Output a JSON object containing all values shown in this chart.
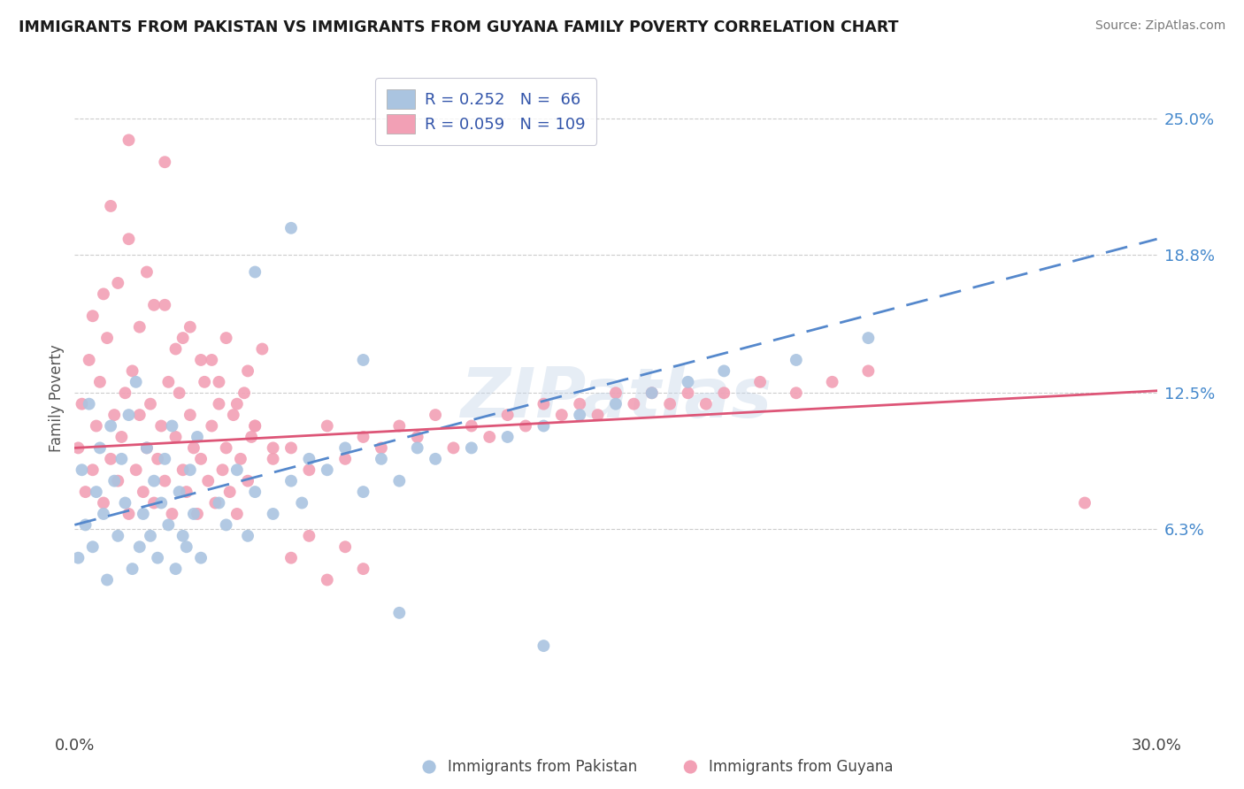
{
  "title": "IMMIGRANTS FROM PAKISTAN VS IMMIGRANTS FROM GUYANA FAMILY POVERTY CORRELATION CHART",
  "source": "Source: ZipAtlas.com",
  "ylabel": "Family Poverty",
  "xlim": [
    0.0,
    0.3
  ],
  "ylim": [
    -0.03,
    0.275
  ],
  "x_tick_labels": [
    "0.0%",
    "30.0%"
  ],
  "x_tick_vals": [
    0.0,
    0.3
  ],
  "y_tick_labels_right": [
    "25.0%",
    "18.8%",
    "12.5%",
    "6.3%"
  ],
  "y_tick_values_right": [
    0.25,
    0.188,
    0.125,
    0.063
  ],
  "pakistan_color": "#aac4e0",
  "guyana_color": "#f2a0b5",
  "pakistan_line_color": "#5588cc",
  "guyana_line_color": "#dd5577",
  "R_pakistan": 0.252,
  "N_pakistan": 66,
  "R_guyana": 0.059,
  "N_guyana": 109,
  "watermark": "ZIPatlas",
  "pak_line_x0": 0.0,
  "pak_line_y0": 0.065,
  "pak_line_x1": 0.3,
  "pak_line_y1": 0.195,
  "guy_line_x0": 0.0,
  "guy_line_y0": 0.1,
  "guy_line_x1": 0.3,
  "guy_line_y1": 0.126,
  "pakistan_scatter_x": [
    0.001,
    0.002,
    0.003,
    0.004,
    0.005,
    0.006,
    0.007,
    0.008,
    0.009,
    0.01,
    0.011,
    0.012,
    0.013,
    0.014,
    0.015,
    0.016,
    0.017,
    0.018,
    0.019,
    0.02,
    0.021,
    0.022,
    0.023,
    0.024,
    0.025,
    0.026,
    0.027,
    0.028,
    0.029,
    0.03,
    0.031,
    0.032,
    0.033,
    0.034,
    0.035,
    0.04,
    0.042,
    0.045,
    0.048,
    0.05,
    0.055,
    0.06,
    0.063,
    0.065,
    0.07,
    0.075,
    0.08,
    0.085,
    0.09,
    0.095,
    0.1,
    0.11,
    0.12,
    0.13,
    0.14,
    0.15,
    0.16,
    0.17,
    0.18,
    0.2,
    0.22,
    0.05,
    0.06,
    0.08,
    0.09,
    0.13
  ],
  "pakistan_scatter_y": [
    0.05,
    0.09,
    0.065,
    0.12,
    0.055,
    0.08,
    0.1,
    0.07,
    0.04,
    0.11,
    0.085,
    0.06,
    0.095,
    0.075,
    0.115,
    0.045,
    0.13,
    0.055,
    0.07,
    0.1,
    0.06,
    0.085,
    0.05,
    0.075,
    0.095,
    0.065,
    0.11,
    0.045,
    0.08,
    0.06,
    0.055,
    0.09,
    0.07,
    0.105,
    0.05,
    0.075,
    0.065,
    0.09,
    0.06,
    0.08,
    0.07,
    0.085,
    0.075,
    0.095,
    0.09,
    0.1,
    0.08,
    0.095,
    0.085,
    0.1,
    0.095,
    0.1,
    0.105,
    0.11,
    0.115,
    0.12,
    0.125,
    0.13,
    0.135,
    0.14,
    0.15,
    0.18,
    0.2,
    0.14,
    0.025,
    0.01
  ],
  "guyana_scatter_x": [
    0.001,
    0.002,
    0.003,
    0.004,
    0.005,
    0.006,
    0.007,
    0.008,
    0.009,
    0.01,
    0.011,
    0.012,
    0.013,
    0.014,
    0.015,
    0.016,
    0.017,
    0.018,
    0.019,
    0.02,
    0.021,
    0.022,
    0.023,
    0.024,
    0.025,
    0.026,
    0.027,
    0.028,
    0.029,
    0.03,
    0.031,
    0.032,
    0.033,
    0.034,
    0.035,
    0.036,
    0.037,
    0.038,
    0.039,
    0.04,
    0.041,
    0.042,
    0.043,
    0.044,
    0.045,
    0.046,
    0.047,
    0.048,
    0.049,
    0.05,
    0.055,
    0.06,
    0.065,
    0.07,
    0.075,
    0.08,
    0.085,
    0.09,
    0.095,
    0.1,
    0.105,
    0.11,
    0.115,
    0.12,
    0.125,
    0.13,
    0.135,
    0.14,
    0.145,
    0.15,
    0.155,
    0.16,
    0.165,
    0.17,
    0.175,
    0.18,
    0.19,
    0.2,
    0.21,
    0.22,
    0.01,
    0.015,
    0.02,
    0.025,
    0.03,
    0.035,
    0.04,
    0.045,
    0.05,
    0.055,
    0.06,
    0.065,
    0.07,
    0.075,
    0.08,
    0.005,
    0.008,
    0.012,
    0.018,
    0.022,
    0.028,
    0.032,
    0.038,
    0.042,
    0.048,
    0.052,
    0.015,
    0.025,
    0.28
  ],
  "guyana_scatter_y": [
    0.1,
    0.12,
    0.08,
    0.14,
    0.09,
    0.11,
    0.13,
    0.075,
    0.15,
    0.095,
    0.115,
    0.085,
    0.105,
    0.125,
    0.07,
    0.135,
    0.09,
    0.115,
    0.08,
    0.1,
    0.12,
    0.075,
    0.095,
    0.11,
    0.085,
    0.13,
    0.07,
    0.105,
    0.125,
    0.09,
    0.08,
    0.115,
    0.1,
    0.07,
    0.095,
    0.13,
    0.085,
    0.11,
    0.075,
    0.12,
    0.09,
    0.1,
    0.08,
    0.115,
    0.07,
    0.095,
    0.125,
    0.085,
    0.105,
    0.11,
    0.095,
    0.1,
    0.09,
    0.11,
    0.095,
    0.105,
    0.1,
    0.11,
    0.105,
    0.115,
    0.1,
    0.11,
    0.105,
    0.115,
    0.11,
    0.12,
    0.115,
    0.12,
    0.115,
    0.125,
    0.12,
    0.125,
    0.12,
    0.125,
    0.12,
    0.125,
    0.13,
    0.125,
    0.13,
    0.135,
    0.21,
    0.195,
    0.18,
    0.165,
    0.15,
    0.14,
    0.13,
    0.12,
    0.11,
    0.1,
    0.05,
    0.06,
    0.04,
    0.055,
    0.045,
    0.16,
    0.17,
    0.175,
    0.155,
    0.165,
    0.145,
    0.155,
    0.14,
    0.15,
    0.135,
    0.145,
    0.24,
    0.23,
    0.075
  ],
  "bottom_legend_labels": [
    "Immigrants from Pakistan",
    "Immigrants from Guyana"
  ],
  "legend_title_color": "#3355aa"
}
